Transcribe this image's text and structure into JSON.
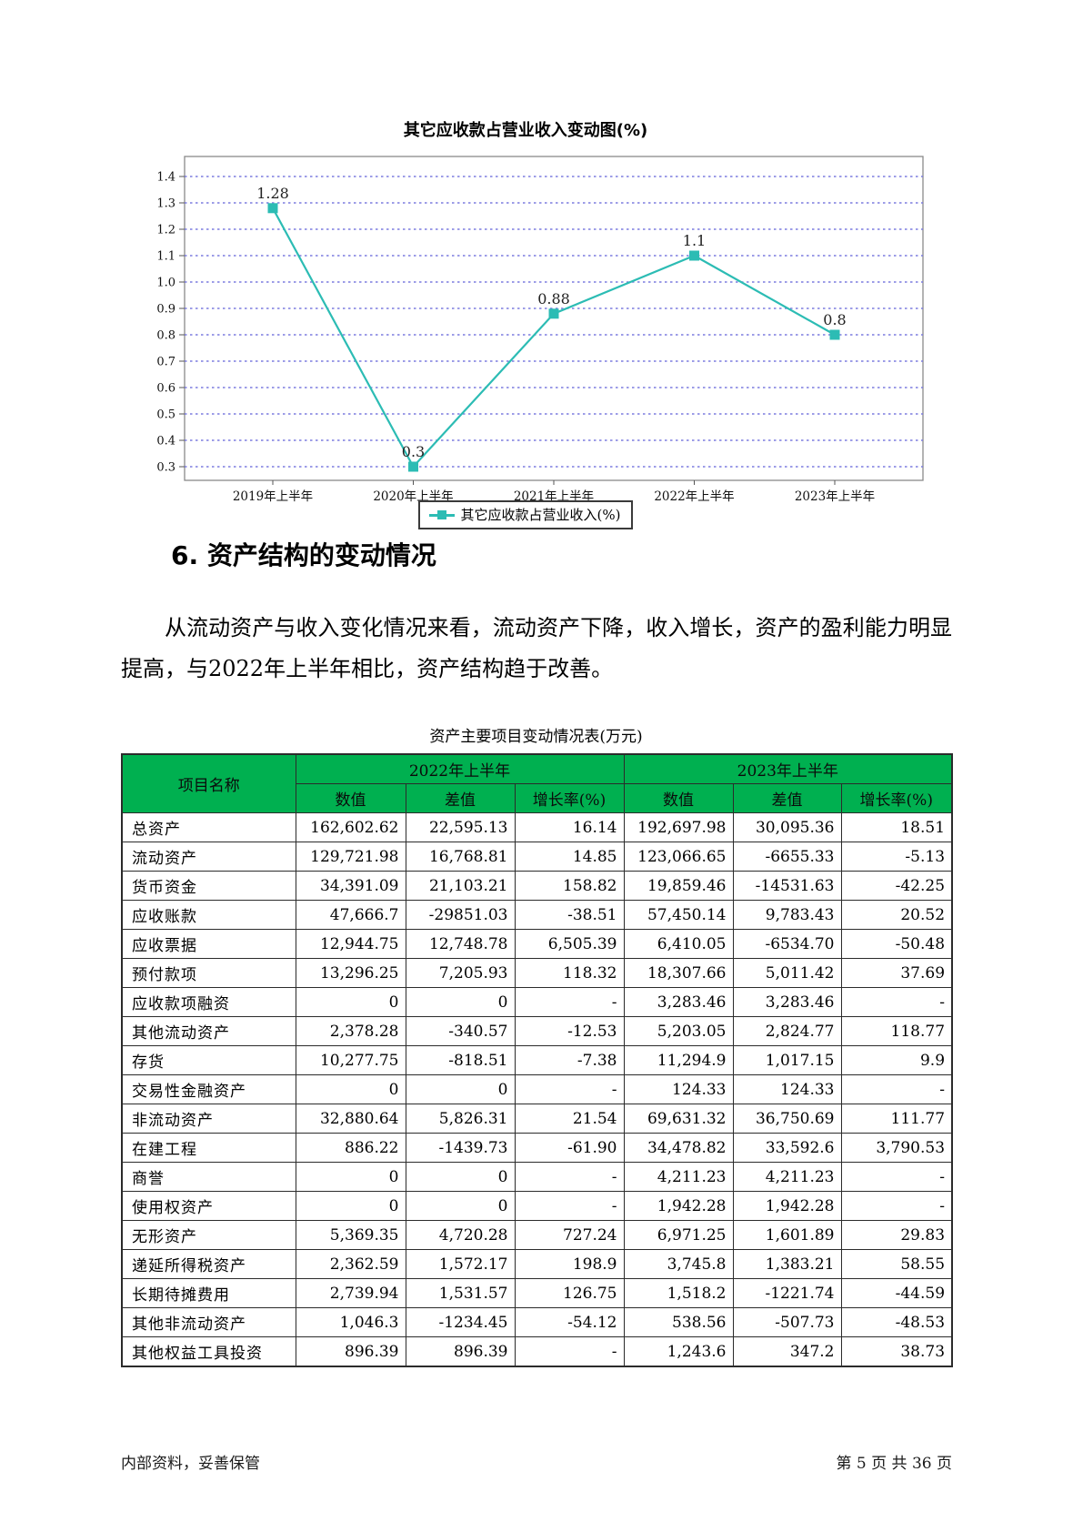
{
  "chart_data": {
    "type": "line",
    "title": "其它应收款占营业收入变动图(%)",
    "categories": [
      "2019年上半年",
      "2020年上半年",
      "2021年上半年",
      "2022年上半年",
      "2023年上半年"
    ],
    "series": [
      {
        "name": "其它应收款占营业收入(%)",
        "values": [
          1.28,
          0.3,
          0.88,
          1.1,
          0.8
        ]
      }
    ],
    "data_labels": [
      "1.28",
      "0.3",
      "0.88",
      "1.1",
      "0.8"
    ],
    "ytick_labels": [
      "1.4",
      "1.3",
      "1.2",
      "1.1",
      "1.0",
      "0.9",
      "0.8",
      "0.7",
      "0.6",
      "0.5",
      "0.4",
      "0.3"
    ],
    "ylim": [
      0.3,
      1.4
    ],
    "grid": true,
    "legend_position": "bottom",
    "legend_label": "其它应收款占营业收入(%)",
    "line_color": "#2cbcb4",
    "marker_color": "#2cbcb4",
    "gridline_color": "#7b7bdf",
    "frame_color": "#8a8a8a",
    "xlabel": "",
    "ylabel": ""
  },
  "section": {
    "heading": "6. 资产结构的变动情况",
    "paragraph": "从流动资产与收入变化情况来看，流动资产下降，收入增长，资产的盈利能力明显提高，与2022年上半年相比，资产结构趋于改善。"
  },
  "asset_table": {
    "title": "资产主要项目变动情况表(万元)",
    "header_bg": "#00b050",
    "header": {
      "item_col": "项目名称",
      "group1": "2022年上半年",
      "group2": "2023年上半年",
      "sub": [
        "数值",
        "差值",
        "增长率(%)",
        "数值",
        "差值",
        "增长率(%)"
      ]
    },
    "rows": [
      {
        "name": "总资产",
        "values": [
          "162,602.62",
          "22,595.13",
          "16.14",
          "192,697.98",
          "30,095.36",
          "18.51"
        ]
      },
      {
        "name": "流动资产",
        "values": [
          "129,721.98",
          "16,768.81",
          "14.85",
          "123,066.65",
          "-6655.33",
          "-5.13"
        ]
      },
      {
        "name": "货币资金",
        "values": [
          "34,391.09",
          "21,103.21",
          "158.82",
          "19,859.46",
          "-14531.63",
          "-42.25"
        ]
      },
      {
        "name": "应收账款",
        "values": [
          "47,666.7",
          "-29851.03",
          "-38.51",
          "57,450.14",
          "9,783.43",
          "20.52"
        ]
      },
      {
        "name": "应收票据",
        "values": [
          "12,944.75",
          "12,748.78",
          "6,505.39",
          "6,410.05",
          "-6534.70",
          "-50.48"
        ]
      },
      {
        "name": "预付款项",
        "values": [
          "13,296.25",
          "7,205.93",
          "118.32",
          "18,307.66",
          "5,011.42",
          "37.69"
        ]
      },
      {
        "name": "应收款项融资",
        "values": [
          "0",
          "0",
          "-",
          "3,283.46",
          "3,283.46",
          "-"
        ]
      },
      {
        "name": "其他流动资产",
        "values": [
          "2,378.28",
          "-340.57",
          "-12.53",
          "5,203.05",
          "2,824.77",
          "118.77"
        ]
      },
      {
        "name": "存货",
        "values": [
          "10,277.75",
          "-818.51",
          "-7.38",
          "11,294.9",
          "1,017.15",
          "9.9"
        ]
      },
      {
        "name": "交易性金融资产",
        "values": [
          "0",
          "0",
          "-",
          "124.33",
          "124.33",
          "-"
        ]
      },
      {
        "name": "非流动资产",
        "values": [
          "32,880.64",
          "5,826.31",
          "21.54",
          "69,631.32",
          "36,750.69",
          "111.77"
        ]
      },
      {
        "name": "在建工程",
        "values": [
          "886.22",
          "-1439.73",
          "-61.90",
          "34,478.82",
          "33,592.6",
          "3,790.53"
        ]
      },
      {
        "name": "商誉",
        "values": [
          "0",
          "0",
          "-",
          "4,211.23",
          "4,211.23",
          "-"
        ]
      },
      {
        "name": "使用权资产",
        "values": [
          "0",
          "0",
          "-",
          "1,942.28",
          "1,942.28",
          "-"
        ]
      },
      {
        "name": "无形资产",
        "values": [
          "5,369.35",
          "4,720.28",
          "727.24",
          "6,971.25",
          "1,601.89",
          "29.83"
        ]
      },
      {
        "name": "递延所得税资产",
        "values": [
          "2,362.59",
          "1,572.17",
          "198.9",
          "3,745.8",
          "1,383.21",
          "58.55"
        ]
      },
      {
        "name": "长期待摊费用",
        "values": [
          "2,739.94",
          "1,531.57",
          "126.75",
          "1,518.2",
          "-1221.74",
          "-44.59"
        ]
      },
      {
        "name": "其他非流动资产",
        "values": [
          "1,046.3",
          "-1234.45",
          "-54.12",
          "538.56",
          "-507.73",
          "-48.53"
        ]
      },
      {
        "name": "其他权益工具投资",
        "values": [
          "896.39",
          "896.39",
          "-",
          "1,243.6",
          "347.2",
          "38.73"
        ]
      }
    ]
  },
  "footer": {
    "left": "内部资料，妥善保管",
    "right": "第 5 页  共 36 页"
  }
}
